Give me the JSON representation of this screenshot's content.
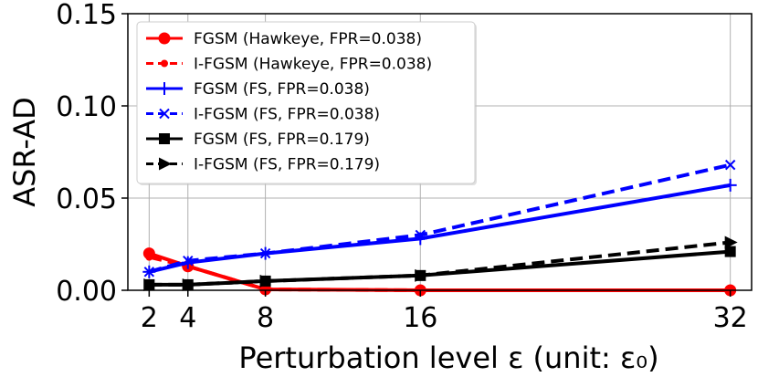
{
  "chart_data": {
    "type": "line",
    "xlabel": "Perturbation level ε (unit: ε₀)",
    "ylabel": "ASR-AD",
    "x": [
      2,
      4,
      8,
      16,
      32
    ],
    "xticks": [
      "2",
      "4",
      "8",
      "16",
      "32"
    ],
    "xlim": [
      0.9,
      33.1
    ],
    "ylim": [
      0,
      0.15
    ],
    "yticks": [
      "0.00",
      "0.05",
      "0.10",
      "0.15"
    ],
    "grid": true,
    "legend_position": "upper-left",
    "series": [
      {
        "name": "FGSM (Hawkeye, FPR=0.038)",
        "values": [
          0.02,
          0.013,
          0.0005,
          0.0,
          0.0
        ],
        "color": "#ff0000",
        "dash": "solid",
        "marker": "circle"
      },
      {
        "name": "I-FGSM (Hawkeye, FPR=0.038)",
        "values": [
          0.018,
          0.013,
          0.0005,
          0.0,
          0.0
        ],
        "color": "#ff0000",
        "dash": "dashed",
        "marker": "point"
      },
      {
        "name": "FGSM (FS, FPR=0.038)",
        "values": [
          0.01,
          0.015,
          0.02,
          0.028,
          0.057
        ],
        "color": "#0000ff",
        "dash": "solid",
        "marker": "plus"
      },
      {
        "name": "I-FGSM (FS, FPR=0.038)",
        "values": [
          0.01,
          0.016,
          0.02,
          0.03,
          0.068
        ],
        "color": "#0000ff",
        "dash": "dashed",
        "marker": "x"
      },
      {
        "name": "FGSM (FS, FPR=0.179)",
        "values": [
          0.003,
          0.003,
          0.005,
          0.008,
          0.021
        ],
        "color": "#000000",
        "dash": "solid",
        "marker": "square"
      },
      {
        "name": "I-FGSM (FS, FPR=0.179)",
        "values": [
          0.003,
          0.003,
          0.005,
          0.008,
          0.026
        ],
        "color": "#000000",
        "dash": "dashed",
        "marker": "triangle-right"
      }
    ]
  }
}
